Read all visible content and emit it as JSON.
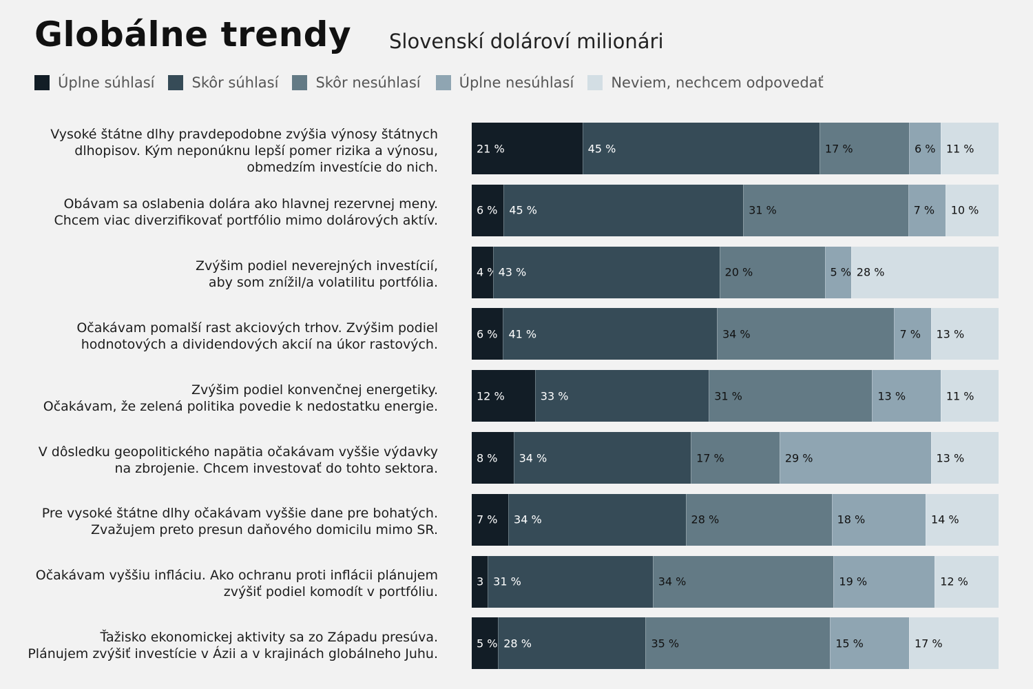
{
  "title": "Globálne trendy",
  "subtitle": "Slovenskí dolároví milionári",
  "colors": {
    "c1": "#121d26",
    "c2": "#364b57",
    "c3": "#637a85",
    "c4": "#8fa5b2",
    "c5": "#d3dee4",
    "background": "#f2f2f2"
  },
  "legend": [
    {
      "label": "Úplne súhlasí",
      "color": "#121d26"
    },
    {
      "label": "Skôr súhlasí",
      "color": "#364b57"
    },
    {
      "label": "Skôr nesúhlasí",
      "color": "#637a85"
    },
    {
      "label": "Úplne nesúhlasí",
      "color": "#8fa5b2"
    },
    {
      "label": "Neviem, nechcem odpovedať",
      "color": "#d3dee4"
    }
  ],
  "chart_data": {
    "type": "bar",
    "orientation": "horizontal",
    "stacked": true,
    "unit": "%",
    "series": [
      {
        "name": "Úplne súhlasí",
        "color": "#121d26",
        "values": [
          21,
          6,
          4,
          6,
          12,
          8,
          7,
          3,
          5
        ]
      },
      {
        "name": "Skôr súhlasí",
        "color": "#364b57",
        "values": [
          45,
          45,
          43,
          41,
          33,
          34,
          34,
          31,
          28
        ]
      },
      {
        "name": "Skôr nesúhlasí",
        "color": "#637a85",
        "values": [
          17,
          31,
          20,
          34,
          31,
          17,
          28,
          34,
          35
        ]
      },
      {
        "name": "Úplne nesúhlasí",
        "color": "#8fa5b2",
        "values": [
          6,
          7,
          5,
          7,
          13,
          29,
          18,
          19,
          15
        ]
      },
      {
        "name": "Neviem, nechcem odpovedať",
        "color": "#d3dee4",
        "values": [
          11,
          10,
          28,
          13,
          11,
          13,
          14,
          12,
          17
        ]
      }
    ],
    "categories": [
      [
        "Vysoké štátne dlhy pravdepodobne zvýšia výnosy štátnych",
        "dlhopisov. Kým neponúknu lepší pomer rizika a výnosu,",
        "obmedzím investície do nich."
      ],
      [
        "Obávam sa oslabenia dolára ako hlavnej rezervnej meny.",
        "Chcem viac diverzifikovať portfólio mimo dolárových aktív."
      ],
      [
        "Zvýšim podiel neverejných investícií,",
        "aby som znížil/a volatilitu portfólia."
      ],
      [
        "Očakávam pomalší rast akciových trhov. Zvýšim podiel",
        "hodnotových a dividendových akcií na úkor rastových."
      ],
      [
        "Zvýšim podiel konvenčnej energetiky.",
        "Očakávam, že zelená politika povedie k nedostatku energie."
      ],
      [
        "V dôsledku geopolitického napätia očakávam vyššie výdavky",
        "na zbrojenie. Chcem investovať do tohto sektora."
      ],
      [
        "Pre vysoké štátne dlhy očakávam vyššie dane pre bohatých.",
        "Zvažujem preto presun daňového domicilu mimo SR."
      ],
      [
        "Očakávam vyššiu infláciu. Ako ochranu proti inflácii plánujem",
        "zvýšiť podiel komodít v portfóliu."
      ],
      [
        "Ťažisko ekonomickej aktivity sa zo Západu presúva.",
        "Plánujem zvýšiť investície v Ázii a v krajinách globálneho Juhu."
      ]
    ]
  }
}
